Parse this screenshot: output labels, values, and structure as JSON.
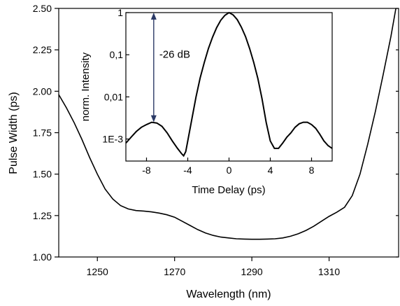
{
  "chart_data": [
    {
      "type": "line",
      "xlabel": "Wavelength (nm)",
      "ylabel": "Pulse Width (ps)",
      "xlim": [
        1240,
        1328
      ],
      "ylim": [
        1.0,
        2.5
      ],
      "xticks": [
        1250,
        1270,
        1290,
        1310
      ],
      "yticks": [
        "1.00",
        "1.25",
        "1.50",
        "1.75",
        "2.00",
        "2.25",
        "2.50"
      ],
      "grid": false,
      "series": [
        {
          "x": [
            1240,
            1242,
            1244,
            1246,
            1248,
            1250,
            1252,
            1254,
            1256,
            1258,
            1260,
            1262,
            1264,
            1266,
            1268,
            1270,
            1272,
            1274,
            1276,
            1278,
            1280,
            1282,
            1284,
            1286,
            1288,
            1290,
            1292,
            1294,
            1296,
            1298,
            1300,
            1302,
            1304,
            1306,
            1308,
            1310,
            1312,
            1314,
            1316,
            1318,
            1320,
            1322,
            1324,
            1326,
            1327.3
          ],
          "y": [
            1.98,
            1.9,
            1.81,
            1.71,
            1.6,
            1.5,
            1.41,
            1.35,
            1.31,
            1.29,
            1.28,
            1.277,
            1.272,
            1.265,
            1.255,
            1.24,
            1.215,
            1.19,
            1.165,
            1.145,
            1.13,
            1.12,
            1.115,
            1.11,
            1.108,
            1.107,
            1.107,
            1.108,
            1.11,
            1.115,
            1.125,
            1.14,
            1.16,
            1.185,
            1.215,
            1.245,
            1.27,
            1.3,
            1.37,
            1.5,
            1.68,
            1.88,
            2.1,
            2.33,
            2.5
          ]
        }
      ]
    },
    {
      "type": "line",
      "xlabel": "Time Delay (ps)",
      "ylabel": "norm. Intensity",
      "xlim": [
        -10,
        10
      ],
      "ylim": [
        0.0003,
        1
      ],
      "yscale": "log",
      "xticks": [
        "-8",
        "-4",
        "0",
        "4",
        "8"
      ],
      "yticks": [
        {
          "value": 1,
          "label": "1"
        },
        {
          "value": 0.1,
          "label": "0,1"
        },
        {
          "value": 0.01,
          "label": "0,01"
        },
        {
          "value": 0.001,
          "label": "1E-3"
        }
      ],
      "annotation": {
        "text": "-26 dB",
        "x": -7.3,
        "from": 1,
        "to": 0.0025
      },
      "series": [
        {
          "x": [
            -10,
            -9.5,
            -9,
            -8.5,
            -8,
            -7.5,
            -7,
            -6.5,
            -6,
            -5.5,
            -5,
            -4.6,
            -4.4,
            -4.2,
            -4,
            -3.6,
            -3.2,
            -2.8,
            -2.4,
            -2,
            -1.6,
            -1.2,
            -0.8,
            -0.4,
            0,
            0.4,
            0.8,
            1.2,
            1.6,
            2,
            2.4,
            2.8,
            3.2,
            3.6,
            4,
            4.4,
            4.8,
            5.2,
            5.6,
            6,
            6.4,
            6.8,
            7.2,
            7.6,
            8,
            8.4,
            8.8,
            9.2,
            9.6,
            10
          ],
          "y": [
            0.0008,
            0.0011,
            0.0015,
            0.0019,
            0.0022,
            0.0025,
            0.0024,
            0.002,
            0.0014,
            0.0009,
            0.0006,
            0.00045,
            0.0004,
            0.0005,
            0.0009,
            0.003,
            0.01,
            0.028,
            0.065,
            0.14,
            0.26,
            0.44,
            0.66,
            0.86,
            1.0,
            0.88,
            0.68,
            0.45,
            0.27,
            0.14,
            0.065,
            0.027,
            0.009,
            0.0025,
            0.0009,
            0.0006,
            0.0006,
            0.0008,
            0.0011,
            0.0014,
            0.0019,
            0.0023,
            0.0025,
            0.0025,
            0.0022,
            0.0018,
            0.0013,
            0.0009,
            0.0007,
            0.0006
          ]
        }
      ]
    }
  ]
}
